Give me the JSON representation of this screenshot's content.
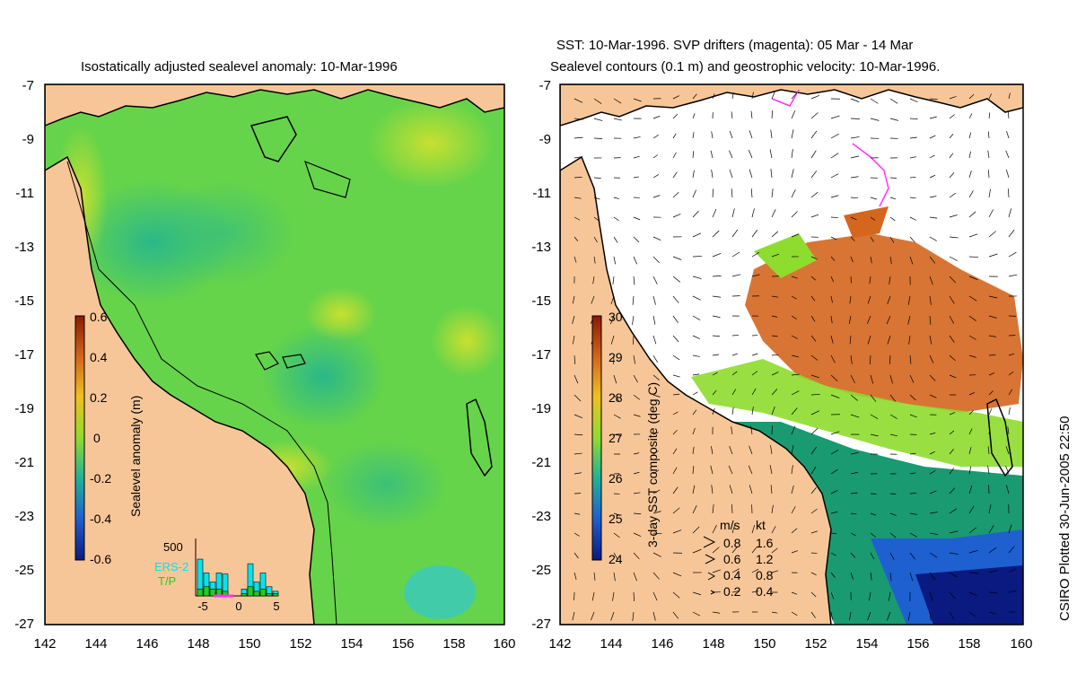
{
  "left_panel": {
    "title": "Isostatically adjusted sealevel anomaly: 10-Mar-1996",
    "y_ticks": [
      "-7",
      "-9",
      "-11",
      "-13",
      "-15",
      "-17",
      "-19",
      "-21",
      "-23",
      "-25",
      "-27"
    ],
    "x_ticks": [
      "142",
      "144",
      "146",
      "148",
      "150",
      "152",
      "154",
      "156",
      "158",
      "160"
    ],
    "colorbar": {
      "label": "Sealevel anomaly (m)",
      "ticks": [
        "0.6",
        "0.4",
        "0.2",
        "0",
        "-0.2",
        "-0.4",
        "-0.6"
      ]
    },
    "histogram": {
      "max_label": "500",
      "legend": [
        "ERS-2",
        "T/P"
      ],
      "x_ticks": [
        "-5",
        "0",
        "5"
      ],
      "ers2_values": [
        320,
        200,
        120,
        200,
        190,
        0,
        0,
        60,
        280,
        120,
        200,
        80,
        40
      ],
      "tp_values": [
        60,
        80,
        60,
        60,
        40,
        0,
        0,
        20,
        80,
        40,
        60,
        20,
        20
      ],
      "colors": {
        "ers2": "#00e5ee",
        "tp": "#22cc22"
      }
    }
  },
  "right_panel": {
    "title_line1": "SST: 10-Mar-1996. SVP drifters (magenta): 05 Mar - 14 Mar",
    "title_line2": "Sealevel contours (0.1 m) and geostrophic velocity: 10-Mar-1996.",
    "y_ticks": [
      "-7",
      "-9",
      "-11",
      "-13",
      "-15",
      "-17",
      "-19",
      "-21",
      "-23",
      "-25",
      "-27"
    ],
    "x_ticks": [
      "142",
      "144",
      "146",
      "148",
      "150",
      "152",
      "154",
      "156",
      "158",
      "160"
    ],
    "colorbar": {
      "label": "3-day SST composite (deg C)",
      "ticks": [
        "30",
        "29",
        "28",
        "27",
        "26",
        "25",
        "24"
      ]
    },
    "velocity_legend": {
      "header_ms": "m/s",
      "header_kt": "kt",
      "rows": [
        {
          "ms": "0.8",
          "kt": "1.6"
        },
        {
          "ms": "0.6",
          "kt": "1.2"
        },
        {
          "ms": "0.4",
          "kt": "0.8"
        },
        {
          "ms": "0.2",
          "kt": "0.4"
        }
      ]
    }
  },
  "footer": {
    "credit": "CSIRO Plotted 30-Jun-2005 22:50"
  },
  "colors": {
    "land": "#f7c698",
    "ocean_sla_base": "#66d44a",
    "sst_warm": "#d4661e",
    "sst_cool": "#1a9a70",
    "drifter": "#ff33ff"
  }
}
